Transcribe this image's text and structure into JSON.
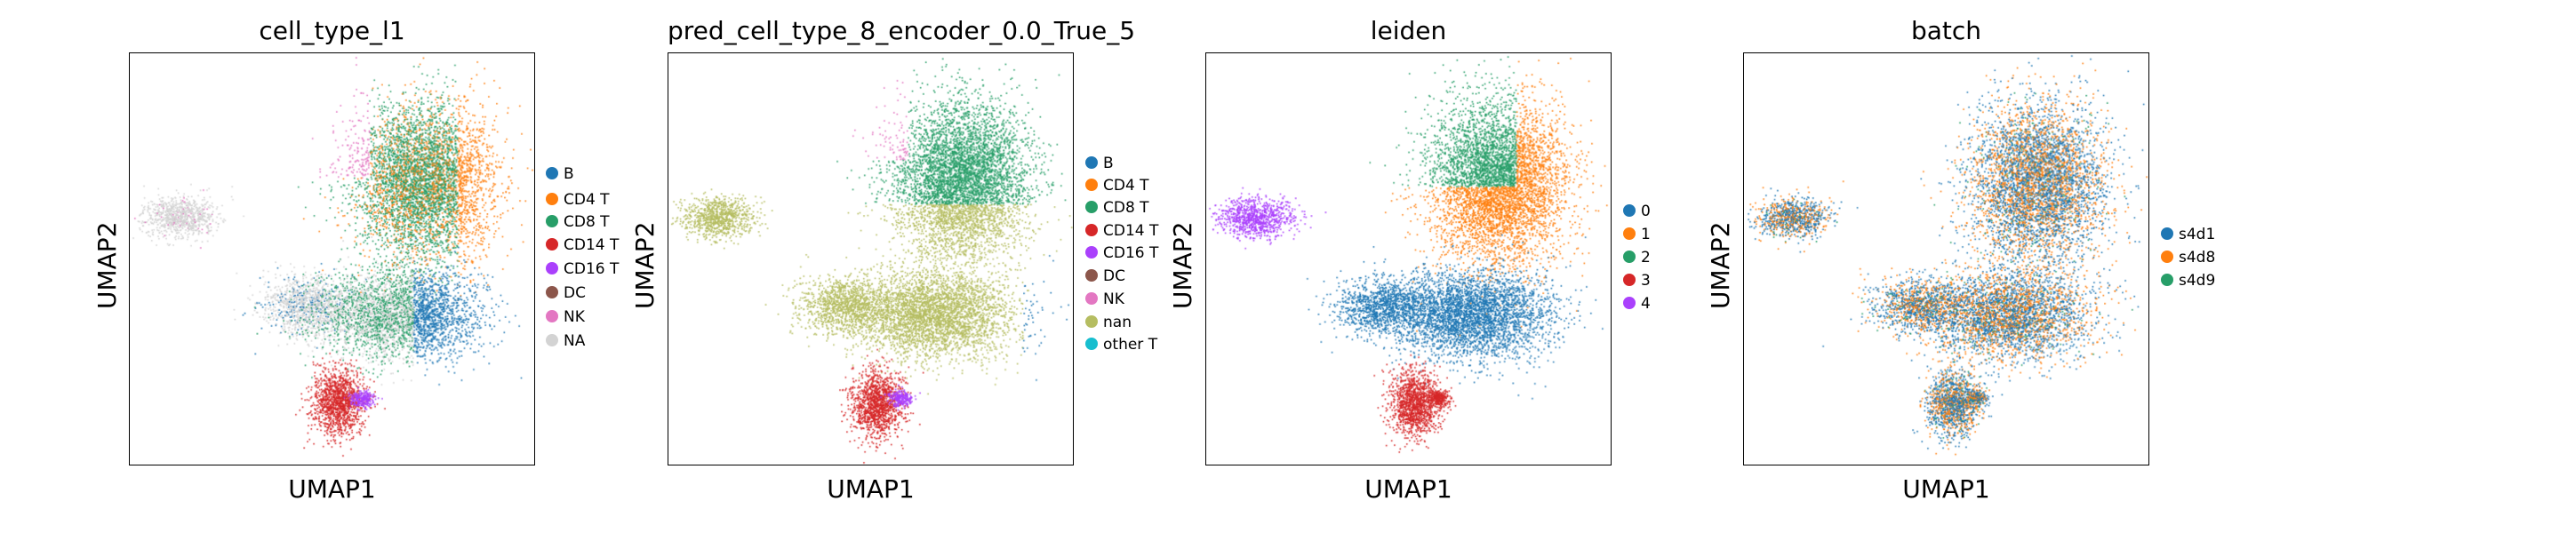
{
  "panels": [
    {
      "title": "cell_type_l1",
      "xlabel": "UMAP1",
      "ylabel": "UMAP2",
      "legend": [
        {
          "label": "B",
          "color": "#1f77b4"
        },
        {
          "label": "CD4 T",
          "color": "#ff7f0e"
        },
        {
          "label": "CD8 T",
          "color": "#279e68"
        },
        {
          "label": "CD14 T",
          "color": "#d62728"
        },
        {
          "label": "CD16 T",
          "color": "#aa40fc"
        },
        {
          "label": "DC",
          "color": "#8c564b"
        },
        {
          "label": "NK",
          "color": "#e377c2"
        },
        {
          "label": "NA",
          "color": "#d3d3d3"
        }
      ]
    },
    {
      "title": "pred_cell_type_8_encoder_0.0_True_5",
      "xlabel": "UMAP1",
      "ylabel": "UMAP2",
      "legend": [
        {
          "label": "B",
          "color": "#1f77b4"
        },
        {
          "label": "CD4 T",
          "color": "#ff7f0e"
        },
        {
          "label": "CD8 T",
          "color": "#279e68"
        },
        {
          "label": "CD14 T",
          "color": "#d62728"
        },
        {
          "label": "CD16 T",
          "color": "#aa40fc"
        },
        {
          "label": "DC",
          "color": "#8c564b"
        },
        {
          "label": "NK",
          "color": "#e377c2"
        },
        {
          "label": "nan",
          "color": "#b5bd61"
        },
        {
          "label": "other T",
          "color": "#17becf"
        }
      ]
    },
    {
      "title": "leiden",
      "xlabel": "UMAP1",
      "ylabel": "UMAP2",
      "legend": [
        {
          "label": "0",
          "color": "#1f77b4"
        },
        {
          "label": "1",
          "color": "#ff7f0e"
        },
        {
          "label": "2",
          "color": "#279e68"
        },
        {
          "label": "3",
          "color": "#d62728"
        },
        {
          "label": "4",
          "color": "#aa40fc"
        }
      ]
    },
    {
      "title": "batch",
      "xlabel": "UMAP1",
      "ylabel": "UMAP2",
      "legend": [
        {
          "label": "s4d1",
          "color": "#1f77b4"
        },
        {
          "label": "s4d8",
          "color": "#ff7f0e"
        },
        {
          "label": "s4d9",
          "color": "#279e68"
        }
      ]
    }
  ],
  "chart_data": [
    {
      "type": "scatter",
      "title": "cell_type_l1",
      "xlabel": "UMAP1",
      "ylabel": "UMAP2",
      "grid": false,
      "legend_position": "right",
      "series": [
        {
          "name": "B"
        },
        {
          "name": "CD4 T"
        },
        {
          "name": "CD8 T"
        },
        {
          "name": "CD14 T"
        },
        {
          "name": "CD16 T"
        },
        {
          "name": "DC"
        },
        {
          "name": "NK"
        },
        {
          "name": "NA"
        }
      ]
    },
    {
      "type": "scatter",
      "title": "pred_cell_type_8_encoder_0.0_True_5",
      "xlabel": "UMAP1",
      "ylabel": "UMAP2",
      "grid": false,
      "legend_position": "right",
      "series": [
        {
          "name": "B"
        },
        {
          "name": "CD4 T"
        },
        {
          "name": "CD8 T"
        },
        {
          "name": "CD14 T"
        },
        {
          "name": "CD16 T"
        },
        {
          "name": "DC"
        },
        {
          "name": "NK"
        },
        {
          "name": "nan"
        },
        {
          "name": "other T"
        }
      ]
    },
    {
      "type": "scatter",
      "title": "leiden",
      "xlabel": "UMAP1",
      "ylabel": "UMAP2",
      "grid": false,
      "legend_position": "right",
      "series": [
        {
          "name": "0"
        },
        {
          "name": "1"
        },
        {
          "name": "2"
        },
        {
          "name": "3"
        },
        {
          "name": "4"
        }
      ]
    },
    {
      "type": "scatter",
      "title": "batch",
      "xlabel": "UMAP1",
      "ylabel": "UMAP2",
      "grid": false,
      "legend_position": "right",
      "series": [
        {
          "name": "s4d1"
        },
        {
          "name": "s4d8"
        },
        {
          "name": "s4d9"
        }
      ]
    }
  ]
}
